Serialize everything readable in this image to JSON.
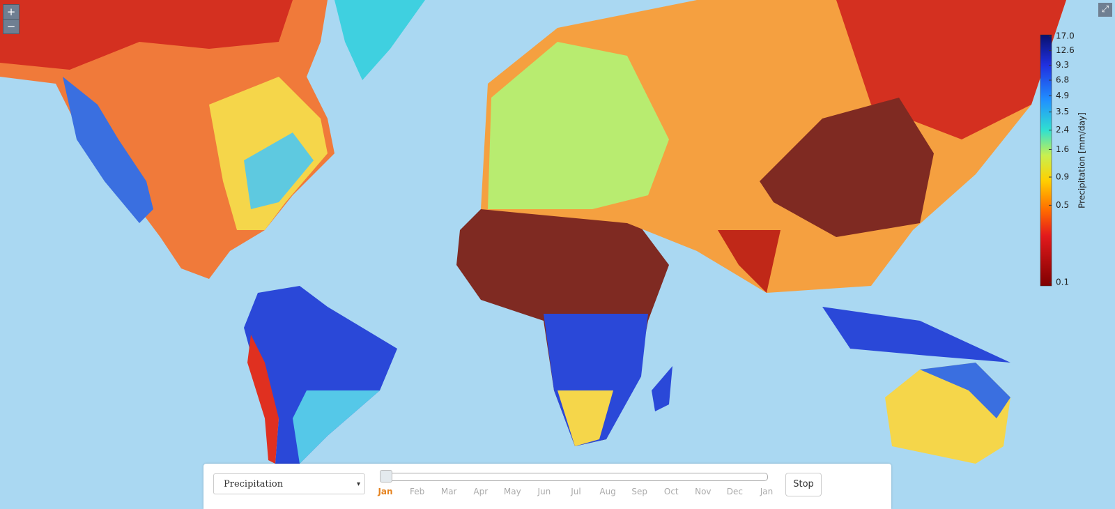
{
  "zoom_controls": {
    "zoom_in": "+",
    "zoom_out": "−"
  },
  "legend": {
    "title": "Precipitation [mm/day]",
    "scale": "log",
    "ticks": [
      {
        "value": 17,
        "label": "17.0"
      },
      12.6,
      9.3,
      6.8,
      4.9,
      3.5,
      2.4,
      1.6,
      0.9,
      0.5,
      0.1
    ]
  },
  "controls": {
    "variable": "Precipitation",
    "months": [
      "Jan",
      "Feb",
      "Mar",
      "Apr",
      "May",
      "Jun",
      "Jul",
      "Aug",
      "Sep",
      "Oct",
      "Nov",
      "Dec",
      "Jan"
    ],
    "selected_month": 0,
    "button": "Stop"
  }
}
